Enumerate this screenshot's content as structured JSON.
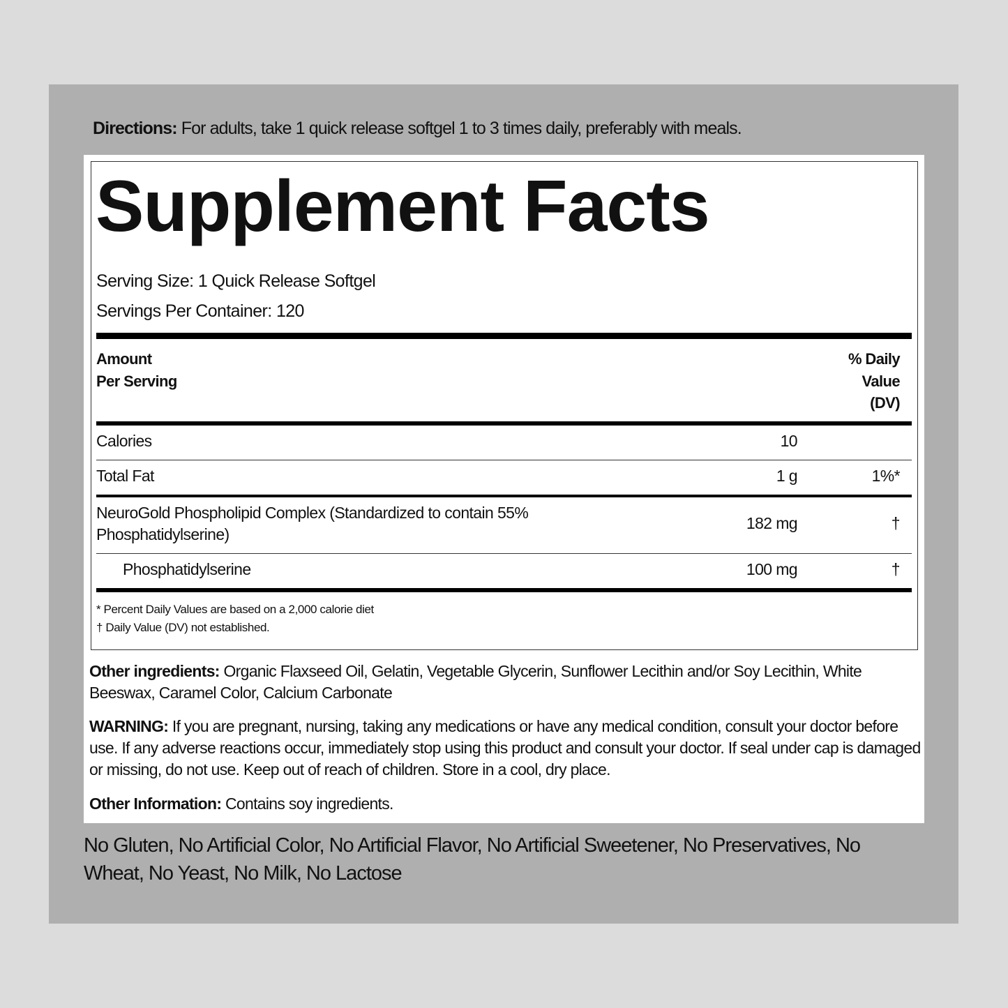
{
  "directions": {
    "label": "Directions:",
    "text": "For adults, take 1 quick release softgel 1 to 3 times daily, preferably with meals."
  },
  "facts": {
    "title": "Supplement Facts",
    "serving_size": "Serving Size: 1 Quick Release Softgel",
    "servings_per_container": "Servings Per Container: 120",
    "header": {
      "amount_line1": "Amount",
      "amount_line2": "Per Serving",
      "dv_line1": "% Daily",
      "dv_line2": "Value",
      "dv_line3": "(DV)"
    },
    "rows": [
      {
        "name": "Calories",
        "amount": "10",
        "dv": ""
      },
      {
        "name": "Total Fat",
        "amount": "1 g",
        "dv": "1%*"
      },
      {
        "name_line1": "NeuroGold Phospholipid Complex (Standardized to contain 55%",
        "name_line2": "Phosphatidylserine)",
        "amount": "182 mg",
        "dv": "†"
      },
      {
        "name": "Phosphatidylserine",
        "amount": "100 mg",
        "dv": "†"
      }
    ],
    "footnote1": "* Percent Daily Values are based on a 2,000 calorie diet",
    "footnote2": "† Daily Value (DV) not established."
  },
  "other_ingredients": {
    "label": "Other ingredients:",
    "text": "Organic Flaxseed Oil, Gelatin, Vegetable Glycerin, Sunflower Lecithin and/or Soy Lecithin, White Beeswax, Caramel Color, Calcium Carbonate"
  },
  "warning": {
    "label": "WARNING:",
    "text": "If you are pregnant, nursing, taking any medications or have any medical condition, consult your doctor before use. If any adverse reactions occur, immediately stop using this product and consult your doctor. If seal under cap is damaged or missing, do not use. Keep out of reach of children. Store in a cool, dry place."
  },
  "other_information": {
    "label": "Other Information:",
    "text": "Contains soy ingredients."
  },
  "free_from": "No Gluten, No Artificial Color, No Artificial Flavor, No Artificial Sweetener, No Preservatives, No Wheat, No Yeast, No Milk, No Lactose"
}
